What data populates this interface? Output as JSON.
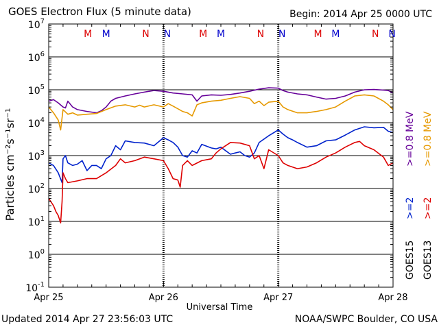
{
  "header": {
    "title": "GOES Electron Flux (5 minute data)",
    "begin": "Begin: 2014 Apr 25 0000 UTC"
  },
  "footer": {
    "updated": "Updated 2014 Apr 27 23:56:03 UTC",
    "credit": "NOAA/SWPC Boulder, CO USA"
  },
  "chart_data": {
    "type": "line",
    "title": "GOES Electron Flux (5 minute data)",
    "xlabel": "Universal Time",
    "ylabel": "Particles cm⁻²s⁻¹sr⁻¹",
    "xlim": [
      0,
      72
    ],
    "x_unit": "hours since 2014 Apr 25 00:00 UTC",
    "x_tick_positions": [
      0,
      24,
      48,
      72
    ],
    "x_tick_labels": [
      "Apr 25",
      "Apr 26",
      "Apr 27",
      "Apr 28"
    ],
    "yscale": "log",
    "ylim": [
      0.1,
      10000000
    ],
    "y_ticks": [
      {
        "base": "10",
        "exp": "7",
        "value": 10000000
      },
      {
        "base": "10",
        "exp": "6",
        "value": 1000000
      },
      {
        "base": "10",
        "exp": "5",
        "value": 100000
      },
      {
        "base": "10",
        "exp": "4",
        "value": 10000
      },
      {
        "base": "10",
        "exp": "3",
        "value": 1000
      },
      {
        "base": "10",
        "exp": "2",
        "value": 100
      },
      {
        "base": "10",
        "exp": "1",
        "value": 10
      },
      {
        "base": "10",
        "exp": "0",
        "value": 1
      },
      {
        "base": "10",
        "exp": "-1",
        "value": 0.1
      }
    ],
    "threshold_line": 1000,
    "local_time_markers": [
      {
        "label": "M",
        "color": "#dd0000",
        "x": 8.2
      },
      {
        "label": "M",
        "color": "#0000cc",
        "x": 12.0
      },
      {
        "label": "N",
        "color": "#dd0000",
        "x": 20.3
      },
      {
        "label": "N",
        "color": "#0000cc",
        "x": 24.8
      },
      {
        "label": "M",
        "color": "#dd0000",
        "x": 32.3
      },
      {
        "label": "M",
        "color": "#0000cc",
        "x": 36.0
      },
      {
        "label": "N",
        "color": "#dd0000",
        "x": 44.3
      },
      {
        "label": "N",
        "color": "#0000cc",
        "x": 48.8
      },
      {
        "label": "M",
        "color": "#dd0000",
        "x": 56.3
      },
      {
        "label": "M",
        "color": "#0000cc",
        "x": 60.0
      },
      {
        "label": "N",
        "color": "#dd0000",
        "x": 68.3
      },
      {
        "label": "N",
        "color": "#0000cc",
        "x": 71.8
      }
    ],
    "legend": [
      {
        "satellite": "GOES15",
        "energy": ">=2",
        "energy2": ">=0.8",
        "unit": "MeV",
        "color_2": "#0022cc",
        "color_08": "#660099"
      },
      {
        "satellite": "GOES13",
        "energy": ">=2",
        "energy2": ">=0.8",
        "unit": "MeV",
        "color_2": "#dd0000",
        "color_08": "#e69900"
      }
    ],
    "series": [
      {
        "name": "GOES15 >=0.8 MeV",
        "color": "#660099",
        "points": [
          [
            0,
            45000
          ],
          [
            1,
            50000
          ],
          [
            2,
            40000
          ],
          [
            3,
            30000
          ],
          [
            3.5,
            28000
          ],
          [
            4,
            45000
          ],
          [
            5,
            30000
          ],
          [
            6,
            25000
          ],
          [
            8,
            22000
          ],
          [
            10,
            20000
          ],
          [
            11,
            23000
          ],
          [
            12,
            30000
          ],
          [
            13,
            45000
          ],
          [
            14,
            55000
          ],
          [
            16,
            65000
          ],
          [
            18,
            75000
          ],
          [
            20,
            85000
          ],
          [
            21,
            90000
          ],
          [
            22,
            95000
          ],
          [
            24,
            90000
          ],
          [
            26,
            80000
          ],
          [
            28,
            75000
          ],
          [
            30,
            70000
          ],
          [
            31,
            45000
          ],
          [
            32,
            65000
          ],
          [
            34,
            70000
          ],
          [
            36,
            68000
          ],
          [
            38,
            72000
          ],
          [
            40,
            80000
          ],
          [
            42,
            90000
          ],
          [
            44,
            105000
          ],
          [
            46,
            115000
          ],
          [
            48,
            112000
          ],
          [
            49,
            95000
          ],
          [
            50,
            85000
          ],
          [
            52,
            75000
          ],
          [
            54,
            70000
          ],
          [
            56,
            60000
          ],
          [
            58,
            52000
          ],
          [
            60,
            55000
          ],
          [
            62,
            65000
          ],
          [
            64,
            85000
          ],
          [
            66,
            100000
          ],
          [
            68,
            102000
          ],
          [
            70,
            98000
          ],
          [
            71,
            95000
          ],
          [
            72,
            80000
          ]
        ]
      },
      {
        "name": "GOES13 >=0.8 MeV",
        "color": "#e69900",
        "points": [
          [
            0,
            30000
          ],
          [
            1,
            20000
          ],
          [
            2,
            12000
          ],
          [
            2.5,
            6000
          ],
          [
            3,
            25000
          ],
          [
            4,
            18000
          ],
          [
            5,
            20000
          ],
          [
            6,
            17000
          ],
          [
            8,
            18000
          ],
          [
            10,
            19000
          ],
          [
            12,
            25000
          ],
          [
            14,
            32000
          ],
          [
            16,
            35000
          ],
          [
            18,
            30000
          ],
          [
            19,
            34000
          ],
          [
            20,
            30000
          ],
          [
            22,
            35000
          ],
          [
            24,
            30000
          ],
          [
            25,
            38000
          ],
          [
            26,
            32000
          ],
          [
            28,
            22000
          ],
          [
            29,
            20000
          ],
          [
            30,
            16000
          ],
          [
            31,
            35000
          ],
          [
            32,
            40000
          ],
          [
            34,
            45000
          ],
          [
            36,
            48000
          ],
          [
            38,
            55000
          ],
          [
            40,
            62000
          ],
          [
            42,
            55000
          ],
          [
            43,
            38000
          ],
          [
            44,
            45000
          ],
          [
            45,
            33000
          ],
          [
            46,
            42000
          ],
          [
            48,
            45000
          ],
          [
            49,
            30000
          ],
          [
            50,
            25000
          ],
          [
            52,
            20000
          ],
          [
            54,
            20000
          ],
          [
            56,
            22000
          ],
          [
            58,
            25000
          ],
          [
            60,
            30000
          ],
          [
            62,
            45000
          ],
          [
            64,
            65000
          ],
          [
            66,
            70000
          ],
          [
            68,
            65000
          ],
          [
            70,
            45000
          ],
          [
            71,
            35000
          ],
          [
            72,
            25000
          ]
        ]
      },
      {
        "name": "GOES15 >=2 MeV",
        "color": "#0022cc",
        "points": [
          [
            0,
            600
          ],
          [
            1,
            500
          ],
          [
            2,
            300
          ],
          [
            2.8,
            150
          ],
          [
            3,
            800
          ],
          [
            3.5,
            1000
          ],
          [
            4,
            600
          ],
          [
            5,
            500
          ],
          [
            6,
            550
          ],
          [
            7,
            700
          ],
          [
            8,
            350
          ],
          [
            9,
            500
          ],
          [
            10,
            500
          ],
          [
            11,
            400
          ],
          [
            12,
            800
          ],
          [
            13,
            1000
          ],
          [
            14,
            2000
          ],
          [
            15,
            1500
          ],
          [
            16,
            2800
          ],
          [
            18,
            2500
          ],
          [
            20,
            2400
          ],
          [
            22,
            2000
          ],
          [
            24,
            3500
          ],
          [
            25,
            3000
          ],
          [
            26,
            2500
          ],
          [
            27,
            1800
          ],
          [
            28,
            1000
          ],
          [
            29,
            900
          ],
          [
            30,
            1400
          ],
          [
            31,
            1200
          ],
          [
            32,
            2200
          ],
          [
            34,
            1700
          ],
          [
            35,
            1600
          ],
          [
            36,
            1800
          ],
          [
            38,
            1100
          ],
          [
            39,
            1200
          ],
          [
            40,
            1300
          ],
          [
            41,
            1000
          ],
          [
            42,
            900
          ],
          [
            43,
            1200
          ],
          [
            44,
            2500
          ],
          [
            46,
            4000
          ],
          [
            48,
            6000
          ],
          [
            49,
            4500
          ],
          [
            50,
            3500
          ],
          [
            51,
            3000
          ],
          [
            52,
            2500
          ],
          [
            54,
            1800
          ],
          [
            56,
            2000
          ],
          [
            58,
            2800
          ],
          [
            60,
            3000
          ],
          [
            62,
            4200
          ],
          [
            64,
            6000
          ],
          [
            66,
            7500
          ],
          [
            68,
            7000
          ],
          [
            70,
            7200
          ],
          [
            71,
            5500
          ],
          [
            72,
            5000
          ]
        ]
      },
      {
        "name": "GOES13 >=2 MeV",
        "color": "#dd0000",
        "points": [
          [
            0,
            50
          ],
          [
            1,
            30
          ],
          [
            1.5,
            20
          ],
          [
            2,
            15
          ],
          [
            2.5,
            9
          ],
          [
            2.8,
            40
          ],
          [
            3,
            300
          ],
          [
            3.5,
            200
          ],
          [
            4,
            150
          ],
          [
            6,
            170
          ],
          [
            8,
            200
          ],
          [
            10,
            200
          ],
          [
            12,
            300
          ],
          [
            14,
            500
          ],
          [
            15,
            800
          ],
          [
            16,
            600
          ],
          [
            18,
            700
          ],
          [
            20,
            900
          ],
          [
            22,
            800
          ],
          [
            24,
            700
          ],
          [
            25,
            400
          ],
          [
            26,
            200
          ],
          [
            27,
            180
          ],
          [
            27.5,
            110
          ],
          [
            28,
            500
          ],
          [
            29,
            700
          ],
          [
            30,
            500
          ],
          [
            32,
            700
          ],
          [
            34,
            800
          ],
          [
            35,
            1200
          ],
          [
            36,
            1600
          ],
          [
            38,
            2500
          ],
          [
            40,
            2400
          ],
          [
            42,
            2000
          ],
          [
            43,
            800
          ],
          [
            44,
            1000
          ],
          [
            45,
            400
          ],
          [
            46,
            1500
          ],
          [
            48,
            1000
          ],
          [
            49,
            600
          ],
          [
            50,
            500
          ],
          [
            52,
            400
          ],
          [
            54,
            450
          ],
          [
            56,
            600
          ],
          [
            58,
            900
          ],
          [
            60,
            1200
          ],
          [
            62,
            1800
          ],
          [
            64,
            2500
          ],
          [
            65,
            2700
          ],
          [
            66,
            2000
          ],
          [
            68,
            1500
          ],
          [
            70,
            900
          ],
          [
            71,
            500
          ],
          [
            72,
            600
          ]
        ]
      }
    ]
  }
}
